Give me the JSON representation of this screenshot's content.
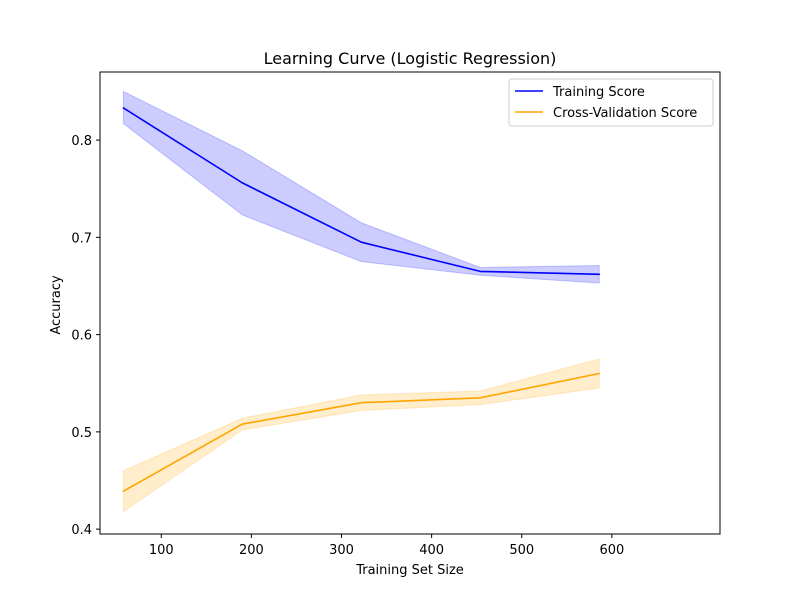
{
  "chart_data": {
    "type": "line",
    "title": "Learning Curve (Logistic Regression)",
    "xlabel": "Training Set Size",
    "ylabel": "Accuracy",
    "xlim": [
      32,
      720
    ],
    "ylim": [
      0.395,
      0.87
    ],
    "xticks": [
      100,
      200,
      300,
      400,
      500,
      600
    ],
    "yticks": [
      0.4,
      0.5,
      0.6,
      0.7,
      0.8
    ],
    "xtick_labels": [
      "100",
      "200",
      "300",
      "400",
      "500",
      "600"
    ],
    "ytick_labels": [
      "0.4",
      "0.5",
      "0.6",
      "0.7",
      "0.8"
    ],
    "grid": false,
    "legend_position": "top-right",
    "x": [
      58,
      190,
      322,
      454,
      586
    ],
    "series": [
      {
        "name": "Training Score",
        "color": "#0000ff",
        "band_color": "#0000ff",
        "values": [
          0.833,
          0.756,
          0.695,
          0.665,
          0.662
        ],
        "upper": [
          0.85,
          0.789,
          0.715,
          0.669,
          0.671
        ],
        "lower": [
          0.817,
          0.723,
          0.675,
          0.661,
          0.653
        ]
      },
      {
        "name": "Cross-Validation Score",
        "color": "#ffa500",
        "band_color": "#ffa500",
        "values": [
          0.439,
          0.508,
          0.53,
          0.535,
          0.56
        ],
        "upper": [
          0.46,
          0.514,
          0.538,
          0.542,
          0.575
        ],
        "lower": [
          0.418,
          0.502,
          0.522,
          0.528,
          0.545
        ]
      }
    ]
  }
}
